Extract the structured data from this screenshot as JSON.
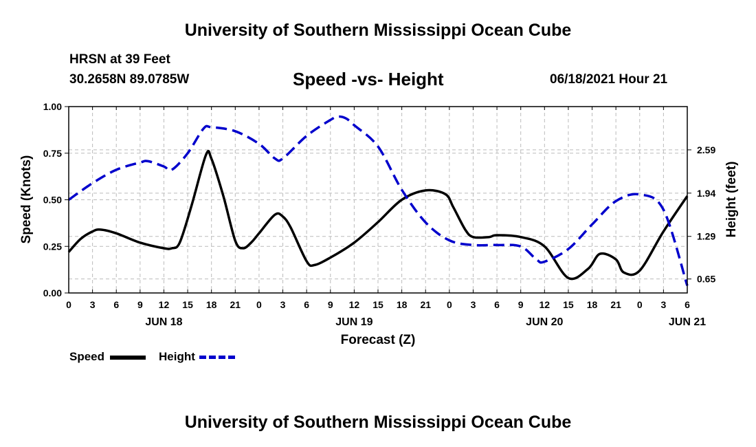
{
  "header": {
    "title": "University of Southern Mississippi Ocean Cube",
    "station": "HRSN at 39 Feet",
    "coords": "30.2658N  89.0785W",
    "subtitle": "Speed -vs- Height",
    "datetime": "06/18/2021 Hour 21"
  },
  "footer": {
    "title": "University of Southern Mississippi Ocean Cube"
  },
  "legend": {
    "speed": "Speed",
    "height": "Height"
  },
  "colors": {
    "speed": "#000000",
    "height": "#0000cc",
    "grid": "#bbbbbb"
  },
  "chart_data": {
    "type": "line",
    "title": "Speed -vs- Height",
    "xlabel": "Forecast (Z)",
    "ylabel": "Speed (Knots)",
    "y2label": "Height (feet)",
    "x_ticks": [
      "0",
      "3",
      "6",
      "9",
      "12",
      "15",
      "18",
      "21",
      "0",
      "3",
      "6",
      "9",
      "12",
      "15",
      "18",
      "21",
      "0",
      "3",
      "6",
      "9",
      "12",
      "15",
      "18",
      "21",
      "0",
      "3",
      "6"
    ],
    "date_labels": [
      {
        "label": "JUN 18",
        "hour": 12
      },
      {
        "label": "JUN 19",
        "hour": 36
      },
      {
        "label": "JUN 20",
        "hour": 60
      },
      {
        "label": "JUN 21",
        "hour": 78
      }
    ],
    "xlim": [
      0,
      78
    ],
    "ylim": [
      0,
      1
    ],
    "y_ticks": [
      "0.00",
      "0.25",
      "0.50",
      "0.75",
      "1.00"
    ],
    "y2lim": [
      0.44,
      3.24
    ],
    "y2_ticks": [
      "0.65",
      "1.29",
      "1.94",
      "2.59"
    ],
    "series": [
      {
        "name": "Speed",
        "axis": "left",
        "x": [
          0,
          1.5,
          3,
          4,
          6,
          9,
          12,
          13,
          14,
          15.5,
          17.3,
          18,
          19.5,
          21,
          22,
          23,
          24,
          26,
          27,
          28,
          30,
          31,
          33,
          36,
          39,
          42,
          45,
          47.5,
          48.5,
          50,
          51,
          53,
          54,
          57,
          60,
          63,
          65.5,
          67,
          69,
          70,
          72,
          75,
          78
        ],
        "y": [
          0.22,
          0.29,
          0.33,
          0.34,
          0.32,
          0.27,
          0.24,
          0.24,
          0.27,
          0.47,
          0.74,
          0.72,
          0.52,
          0.28,
          0.24,
          0.27,
          0.32,
          0.42,
          0.41,
          0.35,
          0.17,
          0.15,
          0.19,
          0.27,
          0.38,
          0.5,
          0.55,
          0.53,
          0.46,
          0.34,
          0.3,
          0.3,
          0.31,
          0.3,
          0.25,
          0.08,
          0.13,
          0.21,
          0.18,
          0.11,
          0.12,
          0.33,
          0.52
        ]
      },
      {
        "name": "Height",
        "axis": "right",
        "x": [
          0,
          3,
          6,
          9,
          10,
          12,
          13,
          15,
          17,
          18,
          21,
          24,
          26,
          27,
          30,
          33,
          34,
          35,
          36,
          39,
          42,
          45,
          48,
          51,
          54,
          57,
          59,
          60,
          63,
          66,
          69,
          72,
          75,
          78
        ],
        "y": [
          1.84,
          2.09,
          2.29,
          2.4,
          2.42,
          2.34,
          2.29,
          2.54,
          2.91,
          2.93,
          2.87,
          2.68,
          2.46,
          2.46,
          2.8,
          3.04,
          3.09,
          3.06,
          2.96,
          2.64,
          1.99,
          1.5,
          1.23,
          1.16,
          1.16,
          1.14,
          0.94,
          0.91,
          1.1,
          1.47,
          1.82,
          1.92,
          1.69,
          0.55
        ]
      }
    ]
  }
}
